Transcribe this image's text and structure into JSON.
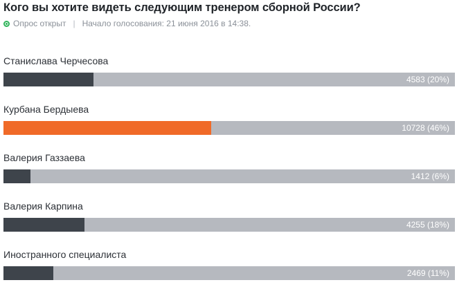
{
  "poll": {
    "title": "Кого вы хотите видеть следующим тренером сборной России?",
    "status": "Опрос открыт",
    "separator": "|",
    "started": "Начало голосования: 21 июня 2016 в 14:38.",
    "accent_colors": {
      "status": "#2fb45a",
      "leader_bar": "#f06a28",
      "bar": "#3e444b",
      "track": "#b6b9bf"
    },
    "options": [
      {
        "label": "Станислава Черчесова",
        "votes": 4583,
        "percent": 20,
        "value_text": "4583 (20%)",
        "leader": false
      },
      {
        "label": "Курбана Бердыева",
        "votes": 10728,
        "percent": 46,
        "value_text": "10728 (46%)",
        "leader": true
      },
      {
        "label": "Валерия Газзаева",
        "votes": 1412,
        "percent": 6,
        "value_text": "1412 (6%)",
        "leader": false
      },
      {
        "label": "Валерия Карпина",
        "votes": 4255,
        "percent": 18,
        "value_text": "4255 (18%)",
        "leader": false
      },
      {
        "label": "Иностранного специалиста",
        "votes": 2469,
        "percent": 11,
        "value_text": "2469 (11%)",
        "leader": false
      }
    ]
  }
}
